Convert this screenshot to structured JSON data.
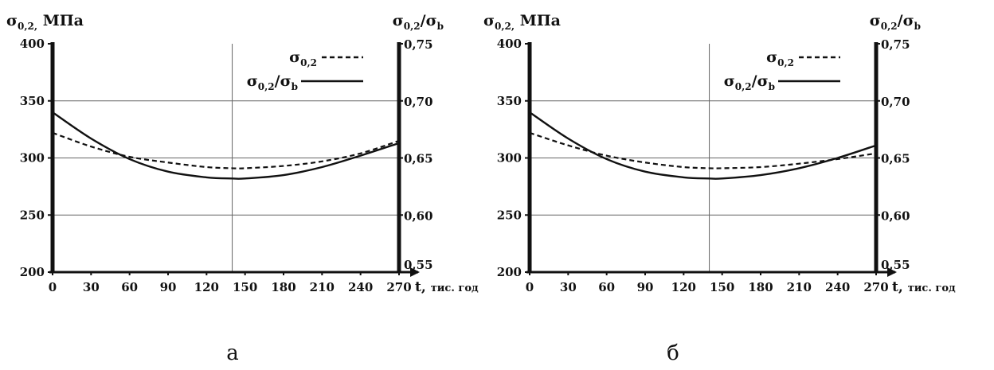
{
  "chart_data": [
    {
      "type": "line",
      "label": "а",
      "x_ticks": [
        "0",
        "30",
        "60",
        "90",
        "120",
        "150",
        "180",
        "210",
        "240",
        "270"
      ],
      "xlim": [
        0,
        270
      ],
      "xlabel": "t, тис. год",
      "ylim": [
        200,
        400
      ],
      "y_ticks": [
        "200",
        "250",
        "300",
        "350",
        "400"
      ],
      "ylabel_left": "σ0,2, МПа",
      "y2lim": [
        0.55,
        0.75
      ],
      "y2_ticks": [
        "0,55",
        "0,60",
        "0,65",
        "0,70",
        "0,75"
      ],
      "ylabel_right": "σ0,2/σb",
      "grid": true,
      "legend_position": "top-right",
      "series": [
        {
          "name": "σ0,2",
          "style": "dashed",
          "axis": "left",
          "x": [
            0,
            30,
            60,
            90,
            120,
            140,
            150,
            180,
            210,
            240,
            270
          ],
          "y": [
            322,
            310,
            301,
            296,
            292,
            291,
            291,
            293,
            297,
            304,
            315
          ]
        },
        {
          "name": "σ0,2/σb",
          "style": "solid",
          "axis": "right",
          "x": [
            0,
            30,
            60,
            90,
            120,
            140,
            150,
            180,
            210,
            240,
            270
          ],
          "y": [
            0.69,
            0.667,
            0.649,
            0.638,
            0.633,
            0.632,
            0.632,
            0.635,
            0.642,
            0.652,
            0.663
          ]
        }
      ]
    },
    {
      "type": "line",
      "label": "б",
      "x_ticks": [
        "0",
        "30",
        "60",
        "90",
        "120",
        "150",
        "180",
        "210",
        "240",
        "270"
      ],
      "xlim": [
        0,
        270
      ],
      "xlabel": "t, тис. год",
      "ylim": [
        200,
        400
      ],
      "y_ticks": [
        "200",
        "250",
        "300",
        "350",
        "400"
      ],
      "ylabel_left": "σ0,2, МПа",
      "y2lim": [
        0.55,
        0.75
      ],
      "y2_ticks": [
        "0,55",
        "0,60",
        "0,65",
        "0,70",
        "0,75"
      ],
      "ylabel_right": "σ0,2/σb",
      "grid": true,
      "legend_position": "top-right",
      "series": [
        {
          "name": "σ0,2",
          "style": "dashed",
          "axis": "left",
          "x": [
            0,
            30,
            60,
            90,
            120,
            140,
            150,
            180,
            210,
            240,
            270
          ],
          "y": [
            322,
            311,
            302,
            296,
            292,
            291,
            291,
            292,
            295,
            299,
            304
          ]
        },
        {
          "name": "σ0,2/σb",
          "style": "solid",
          "axis": "right",
          "x": [
            0,
            30,
            60,
            90,
            120,
            140,
            150,
            180,
            210,
            240,
            270
          ],
          "y": [
            0.69,
            0.667,
            0.649,
            0.638,
            0.633,
            0.632,
            0.632,
            0.635,
            0.641,
            0.65,
            0.661
          ]
        }
      ]
    }
  ]
}
